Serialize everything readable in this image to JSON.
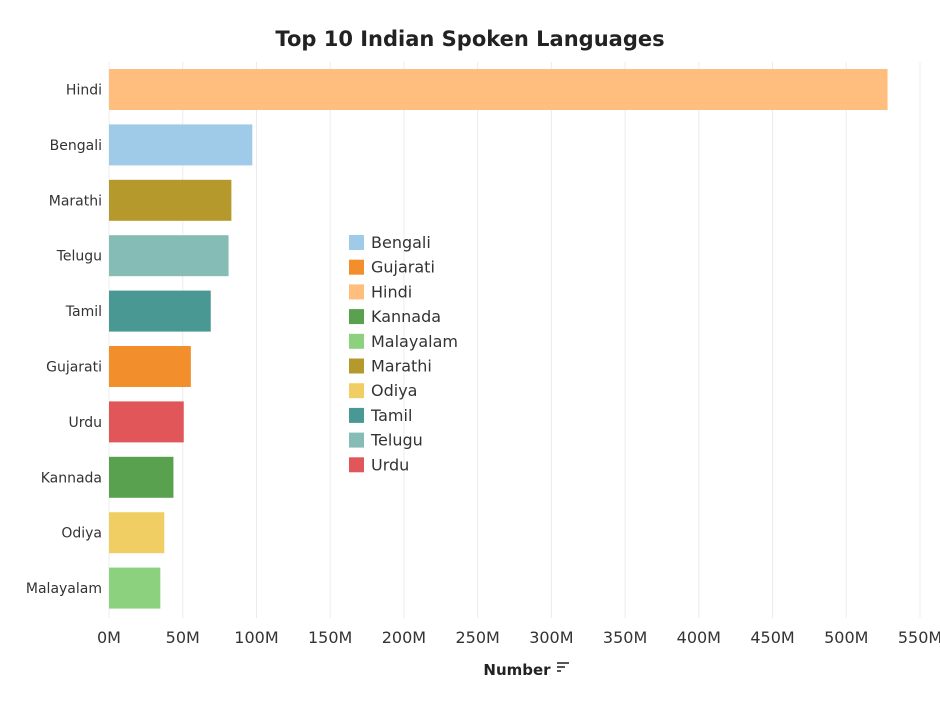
{
  "chart_data": {
    "type": "bar",
    "orientation": "horizontal",
    "title": "Top 10 Indian Spoken Languages",
    "xlabel": "Number",
    "ylabel": "",
    "categories": [
      "Hindi",
      "Bengali",
      "Marathi",
      "Telugu",
      "Tamil",
      "Gujarati",
      "Urdu",
      "Kannada",
      "Odiya",
      "Malayalam"
    ],
    "values": [
      528000000,
      97200000,
      83000000,
      81100000,
      69000000,
      55500000,
      50700000,
      43700000,
      37500000,
      34800000
    ],
    "colors": [
      "#FFBE7D",
      "#A0CBE8",
      "#B6992D",
      "#86BCB6",
      "#499894",
      "#F28E2B",
      "#E15759",
      "#59A14F",
      "#F1CE63",
      "#8CD17D"
    ],
    "xlim": [
      0,
      550000000
    ],
    "x_ticks": [
      "0M",
      "50M",
      "100M",
      "150M",
      "200M",
      "250M",
      "300M",
      "350M",
      "400M",
      "450M",
      "500M",
      "550M"
    ],
    "grid": "vertical",
    "legend_placement": "center",
    "legend": [
      {
        "label": "Bengali",
        "color": "#A0CBE8"
      },
      {
        "label": "Gujarati",
        "color": "#F28E2B"
      },
      {
        "label": "Hindi",
        "color": "#FFBE7D"
      },
      {
        "label": "Kannada",
        "color": "#59A14F"
      },
      {
        "label": "Malayalam",
        "color": "#8CD17D"
      },
      {
        "label": "Marathi",
        "color": "#B6992D"
      },
      {
        "label": "Odiya",
        "color": "#F1CE63"
      },
      {
        "label": "Tamil",
        "color": "#499894"
      },
      {
        "label": "Telugu",
        "color": "#86BCB6"
      },
      {
        "label": "Urdu",
        "color": "#E15759"
      }
    ]
  },
  "icons": {
    "sort_icon": "sort-descending-icon"
  }
}
